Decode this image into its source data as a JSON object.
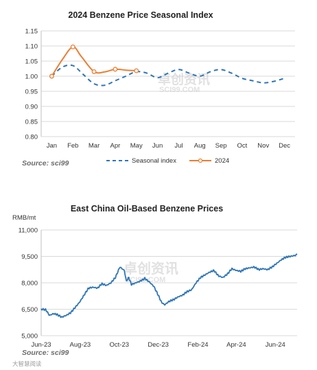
{
  "chart_data": [
    {
      "type": "line",
      "title": "2024 Benzene Price Seasonal Index",
      "categories": [
        "Jan",
        "Feb",
        "Mar",
        "Apr",
        "May",
        "Jun",
        "Jul",
        "Aug",
        "Sep",
        "Oct",
        "Nov",
        "Dec"
      ],
      "ylim": [
        0.8,
        1.15
      ],
      "yticks": [
        "0.80",
        "0.85",
        "0.90",
        "0.95",
        "1.00",
        "1.05",
        "1.10",
        "1.15"
      ],
      "grid": true,
      "legend_position": "bottom",
      "source": "Source: sci99",
      "watermark": [
        "卓创资讯",
        "SCI99.COM"
      ],
      "colors": {
        "seasonal": "#2e75b6",
        "y2024": "#ed7d31"
      },
      "series": [
        {
          "name": "Seasonal index",
          "style": "dashed",
          "color": "#2e75b6",
          "points": [
            [
              1,
              1.0
            ],
            [
              1.5,
              1.03
            ],
            [
              2,
              1.035
            ],
            [
              2.5,
              1.005
            ],
            [
              3,
              0.975
            ],
            [
              3.5,
              0.97
            ],
            [
              4,
              0.985
            ],
            [
              4.5,
              1.0
            ],
            [
              5,
              1.015
            ],
            [
              5.5,
              1.01
            ],
            [
              6,
              0.995
            ],
            [
              6.5,
              1.01
            ],
            [
              7,
              1.022
            ],
            [
              7.5,
              1.01
            ],
            [
              8,
              1.0
            ],
            [
              8.5,
              1.015
            ],
            [
              9,
              1.022
            ],
            [
              9.5,
              1.01
            ],
            [
              10,
              0.993
            ],
            [
              10.5,
              0.985
            ],
            [
              11,
              0.978
            ],
            [
              11.5,
              0.983
            ],
            [
              12,
              0.993
            ]
          ]
        },
        {
          "name": "2024",
          "style": "solid-marker",
          "color": "#ed7d31",
          "points": [
            [
              1,
              1.0
            ],
            [
              2,
              1.097
            ],
            [
              3,
              1.015
            ],
            [
              4,
              1.023
            ],
            [
              5,
              1.018
            ]
          ],
          "smooth_points": [
            [
              1,
              1.0
            ],
            [
              1.5,
              1.055
            ],
            [
              2,
              1.097
            ],
            [
              2.4,
              1.065
            ],
            [
              3,
              1.015
            ],
            [
              3.5,
              1.014
            ],
            [
              4,
              1.023
            ],
            [
              4.5,
              1.02
            ],
            [
              5,
              1.018
            ]
          ]
        }
      ]
    },
    {
      "type": "line",
      "title": "East China Oil-Based Benzene Prices",
      "ylabel": "RMB/mt",
      "ylim": [
        5000,
        11000
      ],
      "yticks": [
        "5,000",
        "6,500",
        "8,000",
        "9,500",
        "11,000"
      ],
      "ytick_values": [
        5000,
        6500,
        8000,
        9500,
        11000
      ],
      "x_range": [
        "2023-06-01",
        "2024-07-05"
      ],
      "xticks": [
        "Jun-23",
        "Aug-23",
        "Oct-23",
        "Dec-23",
        "Feb-24",
        "Apr-24",
        "Jun-24"
      ],
      "xtick_dates": [
        "2023-06-01",
        "2023-08-01",
        "2023-10-01",
        "2023-12-01",
        "2024-02-01",
        "2024-04-01",
        "2024-06-01"
      ],
      "grid": true,
      "source": "Source: sci99",
      "watermark": [
        "卓创资讯",
        "SCI99.COM"
      ],
      "series": [
        {
          "color": "#2e75b6",
          "points": [
            [
              "2023-06-01",
              6500
            ],
            [
              "2023-06-08",
              6480
            ],
            [
              "2023-06-14",
              6150
            ],
            [
              "2023-06-20",
              6250
            ],
            [
              "2023-06-26",
              6200
            ],
            [
              "2023-07-03",
              6050
            ],
            [
              "2023-07-10",
              6150
            ],
            [
              "2023-07-17",
              6300
            ],
            [
              "2023-07-24",
              6600
            ],
            [
              "2023-07-31",
              6900
            ],
            [
              "2023-08-07",
              7300
            ],
            [
              "2023-08-14",
              7700
            ],
            [
              "2023-08-21",
              7750
            ],
            [
              "2023-08-28",
              7700
            ],
            [
              "2023-09-04",
              7950
            ],
            [
              "2023-09-11",
              7850
            ],
            [
              "2023-09-18",
              8000
            ],
            [
              "2023-09-25",
              8300
            ],
            [
              "2023-10-02",
              8900
            ],
            [
              "2023-10-09",
              8700
            ],
            [
              "2023-10-12",
              8100
            ],
            [
              "2023-10-16",
              8300
            ],
            [
              "2023-10-20",
              7900
            ],
            [
              "2023-10-27",
              8000
            ],
            [
              "2023-11-03",
              8100
            ],
            [
              "2023-11-10",
              8250
            ],
            [
              "2023-11-17",
              8050
            ],
            [
              "2023-11-24",
              7800
            ],
            [
              "2023-12-01",
              7300
            ],
            [
              "2023-12-06",
              6900
            ],
            [
              "2023-12-11",
              6750
            ],
            [
              "2023-12-18",
              6950
            ],
            [
              "2023-12-25",
              7050
            ],
            [
              "2024-01-01",
              7200
            ],
            [
              "2024-01-08",
              7300
            ],
            [
              "2024-01-15",
              7500
            ],
            [
              "2024-01-22",
              7600
            ],
            [
              "2024-01-29",
              8000
            ],
            [
              "2024-02-05",
              8300
            ],
            [
              "2024-02-12",
              8450
            ],
            [
              "2024-02-19",
              8600
            ],
            [
              "2024-02-26",
              8700
            ],
            [
              "2024-03-04",
              8400
            ],
            [
              "2024-03-11",
              8300
            ],
            [
              "2024-03-18",
              8500
            ],
            [
              "2024-03-25",
              8800
            ],
            [
              "2024-04-01",
              8700
            ],
            [
              "2024-04-08",
              8650
            ],
            [
              "2024-04-15",
              8800
            ],
            [
              "2024-04-22",
              8850
            ],
            [
              "2024-04-29",
              8900
            ],
            [
              "2024-05-06",
              8750
            ],
            [
              "2024-05-13",
              8800
            ],
            [
              "2024-05-20",
              8750
            ],
            [
              "2024-05-27",
              8900
            ],
            [
              "2024-06-03",
              9100
            ],
            [
              "2024-06-10",
              9300
            ],
            [
              "2024-06-17",
              9450
            ],
            [
              "2024-06-24",
              9500
            ],
            [
              "2024-07-01",
              9550
            ],
            [
              "2024-07-05",
              9600
            ]
          ]
        }
      ]
    }
  ],
  "footer": {
    "corner_text": "大智慧阅读"
  }
}
